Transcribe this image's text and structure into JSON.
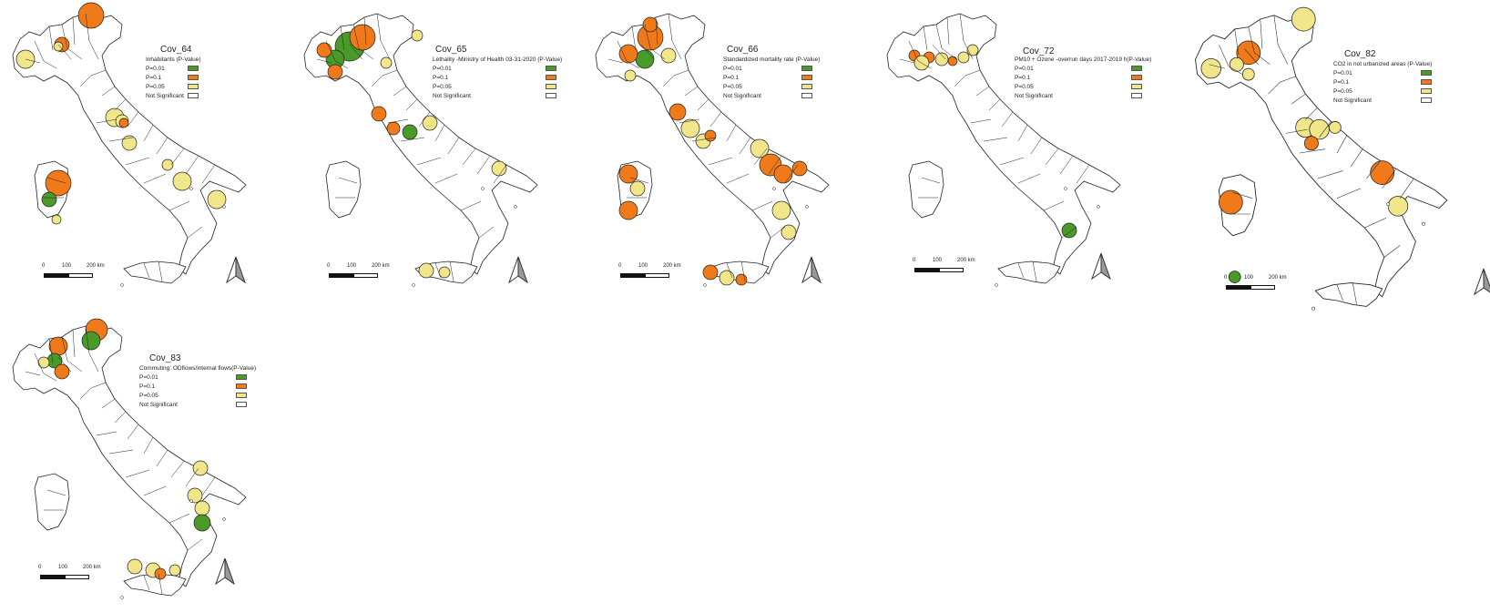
{
  "colors": {
    "p001": "#4a9a2a",
    "p01": "#f07a1a",
    "p005": "#f1e68a",
    "not_significant": "#ffffff",
    "border": "#222222"
  },
  "legend_labels": [
    "P=0.01",
    "P=0.1",
    "P=0.05",
    "Not Significant"
  ],
  "scale": {
    "t0": "0",
    "t1": "100",
    "t2": "200 km"
  },
  "north_arrow_icon": "north-arrow-icon",
  "maps": [
    {
      "id": "cov64",
      "title": "Cov_64",
      "legend_title": "Inhabitants (P-Value)"
    },
    {
      "id": "cov65",
      "title": "Cov_65",
      "legend_title": "Lethality -Ministry of Health 03-31-2020 (P-Value)"
    },
    {
      "id": "cov66",
      "title": "Cov_66",
      "legend_title": "Standardized mortality rate (P-Value)"
    },
    {
      "id": "cov72",
      "title": "Cov_72",
      "legend_title": "PM10 + Ozone -overrun days 2017-2019 h(P-Value)"
    },
    {
      "id": "cov82",
      "title": "Cov_82",
      "legend_title": "CO2 in not urbanized areas (P-Value)"
    },
    {
      "id": "cov83",
      "title": "Cov_83",
      "legend_title": "Commuting: ODflows/internal flows(P-Value)"
    }
  ]
}
